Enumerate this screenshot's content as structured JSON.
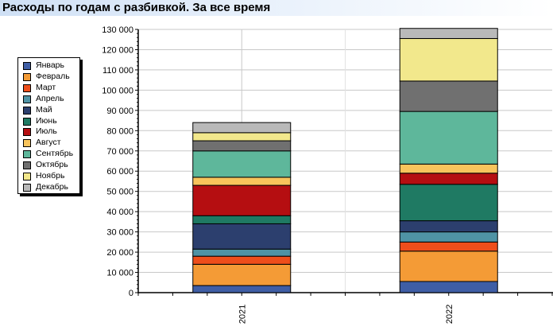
{
  "title": "Расходы по годам с разбивкой. За все время",
  "colors": {
    "Январь": "#3f5ea5",
    "Февраль": "#f49b36",
    "Март": "#ee4e1b",
    "Апрель": "#4f93a5",
    "Май": "#2c3f6e",
    "Июнь": "#1f7a63",
    "Июль": "#b50e11",
    "Август": "#f8c45c",
    "Сентябрь": "#5eb79b",
    "Октябрь": "#707070",
    "Ноябрь": "#f2e88c",
    "Декабрь": "#b9b9b9"
  },
  "chart_data": {
    "type": "bar",
    "stacked": true,
    "title": "Расходы по годам с разбивкой. За все время",
    "categories": [
      "2021",
      "2022"
    ],
    "ylim": [
      0,
      130000
    ],
    "yticks": [
      "0",
      "10 000",
      "20 000",
      "30 000",
      "40 000",
      "50 000",
      "60 000",
      "70 000",
      "80 000",
      "90 000",
      "100 000",
      "110 000",
      "120 000",
      "130 000"
    ],
    "grid": true,
    "legend_position": "left",
    "series": [
      {
        "name": "Январь",
        "values": [
          3500,
          5500
        ]
      },
      {
        "name": "Февраль",
        "values": [
          10500,
          15000
        ]
      },
      {
        "name": "Март",
        "values": [
          4000,
          4500
        ]
      },
      {
        "name": "Апрель",
        "values": [
          3500,
          5000
        ]
      },
      {
        "name": "Май",
        "values": [
          12500,
          5500
        ]
      },
      {
        "name": "Июнь",
        "values": [
          4000,
          18000
        ]
      },
      {
        "name": "Июль",
        "values": [
          15000,
          5500
        ]
      },
      {
        "name": "Август",
        "values": [
          4000,
          4500
        ]
      },
      {
        "name": "Сентябрь",
        "values": [
          13000,
          26000
        ]
      },
      {
        "name": "Октябрь",
        "values": [
          5000,
          15000
        ]
      },
      {
        "name": "Ноябрь",
        "values": [
          4000,
          21000
        ]
      },
      {
        "name": "Декабрь",
        "values": [
          5000,
          5000
        ]
      }
    ]
  }
}
